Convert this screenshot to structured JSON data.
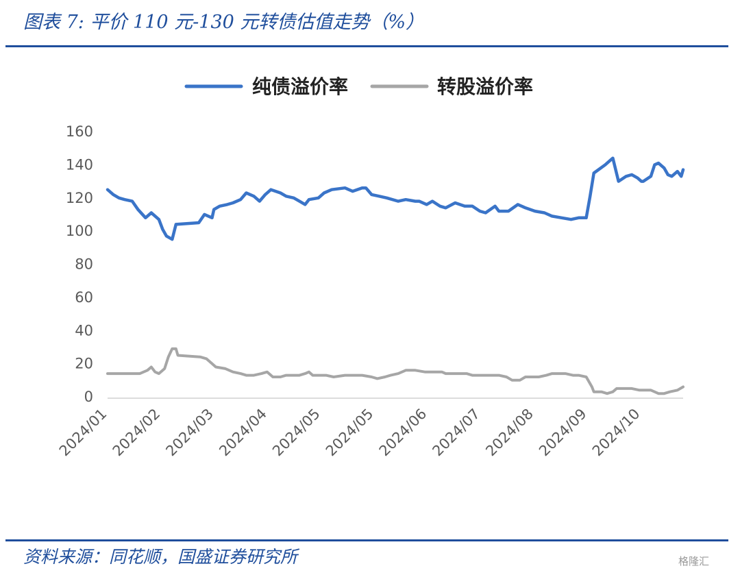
{
  "header": {
    "title": "图表 7:  平价 110 元-130 元转债估值走势（%）"
  },
  "footer": {
    "source": "资料来源：同花顺，国盛证券研究所",
    "watermark": "格隆汇"
  },
  "colors": {
    "bond_premium": "#3a74c8",
    "conversion_premium": "#a6a6a6",
    "rule": "#1f4e9c",
    "axis": "#d0d0d0"
  },
  "chart_data": {
    "type": "line",
    "title": "",
    "xlabel": "",
    "ylabel": "",
    "ylim": [
      0,
      160
    ],
    "yticks": [
      0,
      20,
      40,
      60,
      80,
      100,
      120,
      140,
      160
    ],
    "x_tick_labels": [
      "2024/01",
      "2024/02",
      "2024/03",
      "2024/04",
      "2024/05",
      "2024/05",
      "2024/06",
      "2024/07",
      "2024/08",
      "2024/09",
      "2024/10"
    ],
    "grid": false,
    "legend_position": "top-center",
    "x_range": [
      "2024-01-02",
      "2024-10-31"
    ],
    "series": [
      {
        "name": "纯债溢价率",
        "color": "#3a74c8",
        "points": [
          [
            "2024-01-02",
            125
          ],
          [
            "2024-01-05",
            122
          ],
          [
            "2024-01-08",
            120
          ],
          [
            "2024-01-11",
            119
          ],
          [
            "2024-01-15",
            118
          ],
          [
            "2024-01-18",
            113
          ],
          [
            "2024-01-22",
            108
          ],
          [
            "2024-01-25",
            111
          ],
          [
            "2024-01-29",
            107
          ],
          [
            "2024-01-31",
            101
          ],
          [
            "2024-02-02",
            97
          ],
          [
            "2024-02-05",
            95
          ],
          [
            "2024-02-07",
            104
          ],
          [
            "2024-02-19",
            105
          ],
          [
            "2024-02-22",
            110
          ],
          [
            "2024-02-26",
            108
          ],
          [
            "2024-02-27",
            113
          ],
          [
            "2024-03-01",
            115
          ],
          [
            "2024-03-05",
            116
          ],
          [
            "2024-03-08",
            117
          ],
          [
            "2024-03-12",
            119
          ],
          [
            "2024-03-15",
            123
          ],
          [
            "2024-03-19",
            121
          ],
          [
            "2024-03-22",
            118
          ],
          [
            "2024-03-25",
            122
          ],
          [
            "2024-03-28",
            125
          ],
          [
            "2024-04-02",
            123
          ],
          [
            "2024-04-05",
            121
          ],
          [
            "2024-04-09",
            120
          ],
          [
            "2024-04-12",
            118
          ],
          [
            "2024-04-15",
            116
          ],
          [
            "2024-04-17",
            119
          ],
          [
            "2024-04-22",
            120
          ],
          [
            "2024-04-25",
            123
          ],
          [
            "2024-04-29",
            125
          ],
          [
            "2024-05-06",
            126
          ],
          [
            "2024-05-10",
            124
          ],
          [
            "2024-05-15",
            126
          ],
          [
            "2024-05-17",
            126
          ],
          [
            "2024-05-20",
            122
          ],
          [
            "2024-05-24",
            121
          ],
          [
            "2024-05-28",
            120
          ],
          [
            "2024-06-03",
            118
          ],
          [
            "2024-06-07",
            119
          ],
          [
            "2024-06-12",
            118
          ],
          [
            "2024-06-14",
            118
          ],
          [
            "2024-06-18",
            116
          ],
          [
            "2024-06-21",
            118
          ],
          [
            "2024-06-25",
            115
          ],
          [
            "2024-06-28",
            114
          ],
          [
            "2024-07-03",
            117
          ],
          [
            "2024-07-08",
            115
          ],
          [
            "2024-07-12",
            115
          ],
          [
            "2024-07-16",
            112
          ],
          [
            "2024-07-19",
            111
          ],
          [
            "2024-07-24",
            115
          ],
          [
            "2024-07-26",
            112
          ],
          [
            "2024-07-31",
            112
          ],
          [
            "2024-08-05",
            116
          ],
          [
            "2024-08-09",
            114
          ],
          [
            "2024-08-14",
            112
          ],
          [
            "2024-08-19",
            111
          ],
          [
            "2024-08-23",
            109
          ],
          [
            "2024-08-28",
            108
          ],
          [
            "2024-09-02",
            107
          ],
          [
            "2024-09-06",
            108
          ],
          [
            "2024-09-10",
            108
          ],
          [
            "2024-09-12",
            121
          ],
          [
            "2024-09-14",
            135
          ],
          [
            "2024-09-20",
            140
          ],
          [
            "2024-09-24",
            144
          ],
          [
            "2024-09-27",
            130
          ],
          [
            "2024-10-01",
            133
          ],
          [
            "2024-10-04",
            134
          ],
          [
            "2024-10-07",
            132
          ],
          [
            "2024-10-09",
            130
          ],
          [
            "2024-10-10",
            130
          ],
          [
            "2024-10-14",
            133
          ],
          [
            "2024-10-16",
            140
          ],
          [
            "2024-10-18",
            141
          ],
          [
            "2024-10-21",
            138
          ],
          [
            "2024-10-23",
            134
          ],
          [
            "2024-10-25",
            133
          ],
          [
            "2024-10-28",
            136
          ],
          [
            "2024-10-30",
            133
          ],
          [
            "2024-10-31",
            137
          ]
        ]
      },
      {
        "name": "转股溢价率",
        "color": "#a6a6a6",
        "points": [
          [
            "2024-01-02",
            14
          ],
          [
            "2024-01-05",
            14
          ],
          [
            "2024-01-09",
            14
          ],
          [
            "2024-01-12",
            14
          ],
          [
            "2024-01-16",
            14
          ],
          [
            "2024-01-19",
            14
          ],
          [
            "2024-01-23",
            16
          ],
          [
            "2024-01-25",
            18
          ],
          [
            "2024-01-27",
            15
          ],
          [
            "2024-01-29",
            14
          ],
          [
            "2024-02-01",
            17
          ],
          [
            "2024-02-03",
            24
          ],
          [
            "2024-02-05",
            29
          ],
          [
            "2024-02-07",
            29
          ],
          [
            "2024-02-08",
            25
          ],
          [
            "2024-02-20",
            24
          ],
          [
            "2024-02-23",
            23
          ],
          [
            "2024-02-26",
            20
          ],
          [
            "2024-02-28",
            18
          ],
          [
            "2024-03-04",
            17
          ],
          [
            "2024-03-08",
            15
          ],
          [
            "2024-03-12",
            14
          ],
          [
            "2024-03-15",
            13
          ],
          [
            "2024-03-19",
            13
          ],
          [
            "2024-03-23",
            14
          ],
          [
            "2024-03-26",
            15
          ],
          [
            "2024-03-29",
            12
          ],
          [
            "2024-04-02",
            12
          ],
          [
            "2024-04-05",
            13
          ],
          [
            "2024-04-09",
            13
          ],
          [
            "2024-04-12",
            13
          ],
          [
            "2024-04-15",
            14
          ],
          [
            "2024-04-17",
            15
          ],
          [
            "2024-04-19",
            13
          ],
          [
            "2024-04-22",
            13
          ],
          [
            "2024-04-26",
            13
          ],
          [
            "2024-04-30",
            12
          ],
          [
            "2024-05-06",
            13
          ],
          [
            "2024-05-10",
            13
          ],
          [
            "2024-05-15",
            13
          ],
          [
            "2024-05-20",
            12
          ],
          [
            "2024-05-23",
            11
          ],
          [
            "2024-05-27",
            12
          ],
          [
            "2024-05-30",
            13
          ],
          [
            "2024-06-03",
            14
          ],
          [
            "2024-06-05",
            15
          ],
          [
            "2024-06-07",
            16
          ],
          [
            "2024-06-12",
            16
          ],
          [
            "2024-06-17",
            15
          ],
          [
            "2024-06-21",
            15
          ],
          [
            "2024-06-26",
            15
          ],
          [
            "2024-06-28",
            14
          ],
          [
            "2024-07-02",
            14
          ],
          [
            "2024-07-05",
            14
          ],
          [
            "2024-07-09",
            14
          ],
          [
            "2024-07-12",
            13
          ],
          [
            "2024-07-16",
            13
          ],
          [
            "2024-07-19",
            13
          ],
          [
            "2024-07-23",
            13
          ],
          [
            "2024-07-26",
            13
          ],
          [
            "2024-07-30",
            12
          ],
          [
            "2024-08-02",
            10
          ],
          [
            "2024-08-06",
            10
          ],
          [
            "2024-08-09",
            12
          ],
          [
            "2024-08-13",
            12
          ],
          [
            "2024-08-16",
            12
          ],
          [
            "2024-08-20",
            13
          ],
          [
            "2024-08-23",
            14
          ],
          [
            "2024-08-27",
            14
          ],
          [
            "2024-08-30",
            14
          ],
          [
            "2024-09-03",
            13
          ],
          [
            "2024-09-06",
            13
          ],
          [
            "2024-09-10",
            12
          ],
          [
            "2024-09-13",
            6
          ],
          [
            "2024-09-14",
            3
          ],
          [
            "2024-09-18",
            3
          ],
          [
            "2024-09-21",
            2
          ],
          [
            "2024-09-24",
            3
          ],
          [
            "2024-09-26",
            5
          ],
          [
            "2024-09-30",
            5
          ],
          [
            "2024-10-04",
            5
          ],
          [
            "2024-10-08",
            4
          ],
          [
            "2024-10-11",
            4
          ],
          [
            "2024-10-14",
            4
          ],
          [
            "2024-10-16",
            3
          ],
          [
            "2024-10-18",
            2
          ],
          [
            "2024-10-21",
            2
          ],
          [
            "2024-10-24",
            3
          ],
          [
            "2024-10-28",
            4
          ],
          [
            "2024-10-31",
            6
          ]
        ]
      }
    ]
  }
}
